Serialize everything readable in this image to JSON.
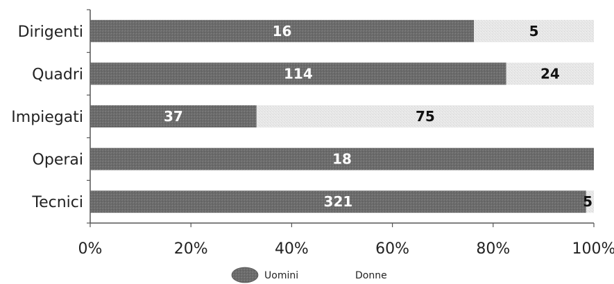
{
  "chart_data": {
    "type": "bar",
    "orientation": "horizontal",
    "stacked": "percent",
    "categories": [
      "Dirigenti",
      "Quadri",
      "Impiegati",
      "Operai",
      "Tecnici"
    ],
    "series": [
      {
        "name": "Uomini",
        "values": [
          16,
          114,
          37,
          18,
          321
        ],
        "color": "#6b6b6b"
      },
      {
        "name": "Donne",
        "values": [
          5,
          24,
          75,
          0,
          5
        ],
        "color": "#e6e6e6"
      }
    ],
    "xticks": [
      "0%",
      "20%",
      "40%",
      "60%",
      "80%",
      "100%"
    ],
    "xlim": [
      0,
      100
    ],
    "grid": false,
    "legend": "bottom"
  }
}
